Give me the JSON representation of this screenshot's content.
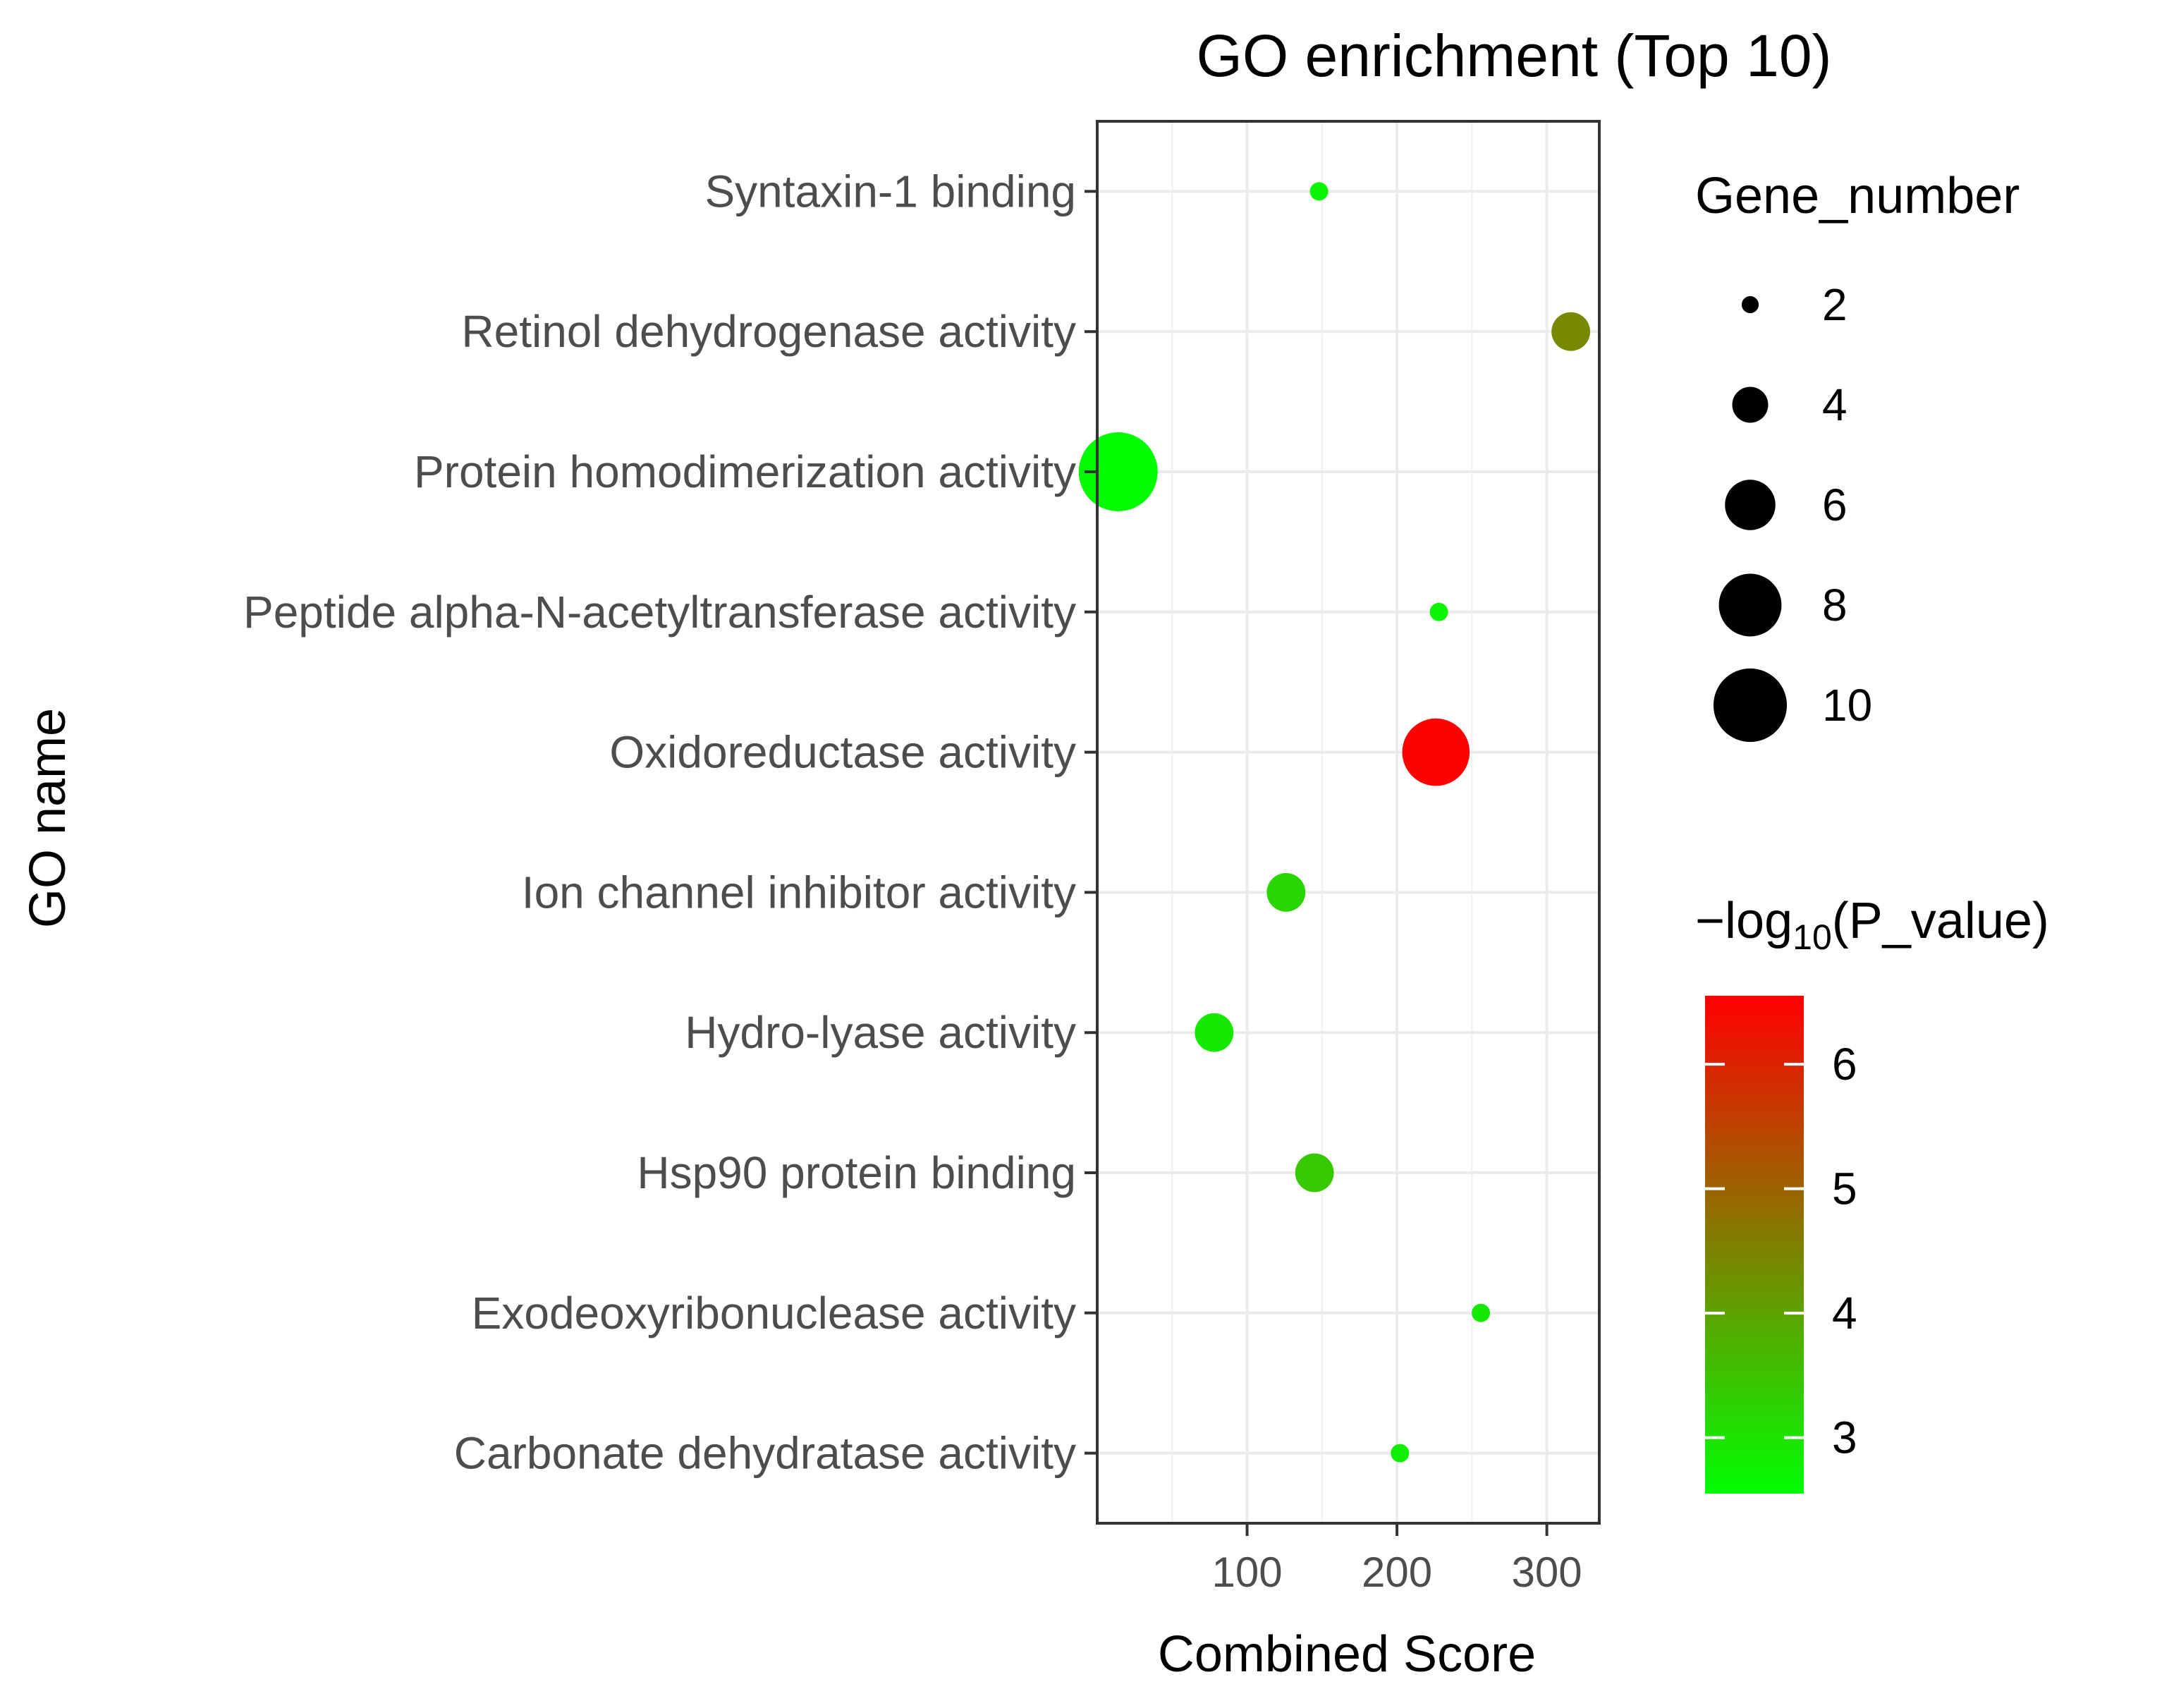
{
  "chart_data": {
    "type": "scatter",
    "title": "GO enrichment (Top 10)",
    "xlabel": "Combined Score",
    "ylabel": "GO name",
    "xlim": [
      0,
      335
    ],
    "xticks": [
      100,
      200,
      300
    ],
    "categories": [
      "Syntaxin-1 binding",
      "Retinol dehydrogenase activity",
      "Protein homodimerization activity",
      "Peptide alpha-N-acetyltransferase activity",
      "Oxidoreductase activity",
      "Ion channel inhibitor activity",
      "Hydro-lyase activity",
      "Hsp90 protein binding",
      "Exodeoxyribonuclease activity",
      "Carbonate dehydratase activity"
    ],
    "points": [
      {
        "name": "Syntaxin-1 binding",
        "combined_score": 148,
        "gene_number": 2,
        "neg_log10_p": 2.7
      },
      {
        "name": "Retinol dehydrogenase activity",
        "combined_score": 316,
        "gene_number": 4,
        "neg_log10_p": 4.4
      },
      {
        "name": "Protein homodimerization activity",
        "combined_score": 14,
        "gene_number": 10,
        "neg_log10_p": 2.6
      },
      {
        "name": "Peptide alpha-N-acetyltransferase activity",
        "combined_score": 228,
        "gene_number": 2,
        "neg_log10_p": 2.7
      },
      {
        "name": "Oxidoreductase activity",
        "combined_score": 226,
        "gene_number": 8,
        "neg_log10_p": 6.5
      },
      {
        "name": "Ion channel inhibitor activity",
        "combined_score": 126,
        "gene_number": 4,
        "neg_log10_p": 3.2
      },
      {
        "name": "Hydro-lyase activity",
        "combined_score": 78,
        "gene_number": 4,
        "neg_log10_p": 2.9
      },
      {
        "name": "Hsp90 protein binding",
        "combined_score": 145,
        "gene_number": 4,
        "neg_log10_p": 3.4
      },
      {
        "name": "Exodeoxyribonuclease activity",
        "combined_score": 256,
        "gene_number": 2,
        "neg_log10_p": 2.9
      },
      {
        "name": "Carbonate dehydratase activity",
        "combined_score": 202,
        "gene_number": 2,
        "neg_log10_p": 2.8
      }
    ],
    "size_legend": {
      "title": "Gene_number",
      "values": [
        2,
        4,
        6,
        8,
        10
      ],
      "labels": [
        "2",
        "4",
        "6",
        "8",
        "10"
      ]
    },
    "color_legend": {
      "title_prefix": "−log",
      "title_subscript": "10",
      "title_suffix": "(P_value)",
      "range": [
        2.55,
        6.55
      ],
      "ticks": [
        3,
        4,
        5,
        6
      ],
      "tick_labels": [
        "3",
        "4",
        "5",
        "6"
      ],
      "low_color": "#00ff00",
      "high_color": "#ff0000"
    },
    "legend_position": "right",
    "grid": true
  }
}
